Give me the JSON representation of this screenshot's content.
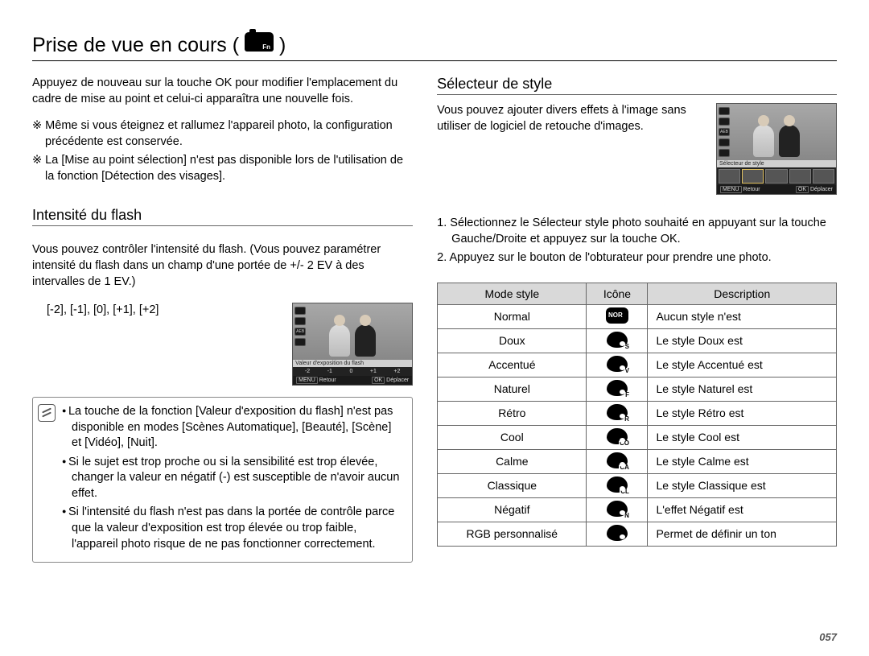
{
  "page_number": "057",
  "title": "Prise de vue en cours (",
  "title_close": ")",
  "camera_label": "Fn",
  "left": {
    "intro": "Appuyez de nouveau sur la touche OK pour modifier l'emplacement du cadre de mise au point et celui-ci apparaîtra une nouvelle fois.",
    "note1": "※ Même si vous éteignez et rallumez l'appareil photo, la configuration précédente est conservée.",
    "note2": "※ La [Mise au point sélection] n'est pas disponible lors de l'utilisation de la fonction [Détection des visages].",
    "flash_h": "Intensité du flash",
    "flash_p": "Vous pouvez contrôler l'intensité du flash. (Vous pouvez paramétrer intensité du flash dans un champ d'une portée de +/- 2 EV à des intervalles de 1 EV.)",
    "flash_vals": "[-2], [-1], [0], [+1], [+2]",
    "lcd_caption": "Valeur d'exposition du flash",
    "lcd_scale": [
      "-2",
      "-1",
      "0",
      "+1",
      "+2"
    ],
    "lcd_back": "Retour",
    "lcd_move": "Déplacer",
    "lcd_back_btn": "MENU",
    "lcd_move_btn": "OK",
    "bullets": [
      "La touche de la fonction [Valeur d'exposition du flash] n'est pas disponible en modes [Scènes Automatique], [Beauté], [Scène] et [Vidéo], [Nuit].",
      "Si le sujet est trop proche ou si la sensibilité est trop élevée, changer la valeur en négatif (-) est susceptible de n'avoir aucun effet.",
      "Si l'intensité du flash n'est pas dans la portée de contrôle parce que la valeur d'exposition est trop élevée ou trop faible, l'appareil photo risque de ne pas fonctionner correctement."
    ]
  },
  "right": {
    "sel_h": "Sélecteur de style",
    "sel_p": "Vous pouvez ajouter divers effets à l'image sans utiliser de logiciel de retouche d'images.",
    "lcd_caption": "Sélecteur de style",
    "lcd_back": "Retour",
    "lcd_move": "Déplacer",
    "step1": "1. Sélectionnez le Sélecteur style photo souhaité en appuyant sur la touche Gauche/Droite et appuyez sur la touche OK.",
    "step2": "2. Appuyez sur le bouton de l'obturateur pour prendre une photo.",
    "th1": "Mode style",
    "th2": "Icône",
    "th3": "Description",
    "rows": [
      {
        "mode": "Normal",
        "desc": "Aucun style n'est",
        "sub": "NOR",
        "nor": true
      },
      {
        "mode": "Doux",
        "desc": "Le style Doux est",
        "sub": "S"
      },
      {
        "mode": "Accentué",
        "desc": "Le style Accentué est",
        "sub": "V"
      },
      {
        "mode": "Naturel",
        "desc": "Le style Naturel est",
        "sub": "F"
      },
      {
        "mode": "Rétro",
        "desc": "Le style Rétro est",
        "sub": "R"
      },
      {
        "mode": "Cool",
        "desc": "Le style Cool est",
        "sub": "CO"
      },
      {
        "mode": "Calme",
        "desc": "Le style Calme est",
        "sub": "CA"
      },
      {
        "mode": "Classique",
        "desc": "Le style Classique est",
        "sub": "CL"
      },
      {
        "mode": "Négatif",
        "desc": "L'effet Négatif est",
        "sub": "N"
      },
      {
        "mode": "RGB personnalisé",
        "desc": "Permet de définir un ton",
        "sub": ""
      }
    ]
  }
}
